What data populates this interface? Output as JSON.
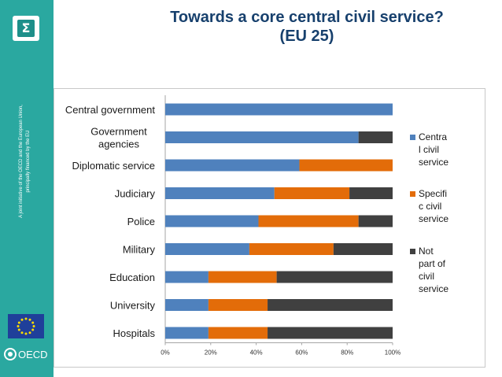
{
  "title_line1": "Towards a core central civil service?",
  "title_line2": "(EU 25)",
  "sidebar": {
    "vertical_text_line1": "A joint initiative of the OECD and the European Union,",
    "vertical_text_line2": "principally financed by the EU",
    "oecd_label": "OECD",
    "logo_icon": "sigma-icon",
    "colors": {
      "sidebar": "#2aa8a0",
      "logo": "#1e8f8a"
    }
  },
  "chart_data": {
    "type": "bar",
    "orientation": "horizontal",
    "stacked": "percent",
    "categories": [
      "Central government",
      "Government agencies",
      "Diplomatic service",
      "Judiciary",
      "Police",
      "Military",
      "Education",
      "University",
      "Hospitals"
    ],
    "category_labels": [
      [
        "Central government"
      ],
      [
        "Government",
        "agencies"
      ],
      [
        "Diplomatic service"
      ],
      [
        "Judiciary"
      ],
      [
        "Police"
      ],
      [
        "Military"
      ],
      [
        "Education"
      ],
      [
        "University"
      ],
      [
        "Hospitals"
      ]
    ],
    "series": [
      {
        "name": "Central civil service",
        "legend_lines": [
          "Centra",
          "l civil",
          "service"
        ],
        "color": "#4f81bd",
        "values": [
          100,
          85,
          59,
          48,
          41,
          37,
          19,
          19,
          19
        ]
      },
      {
        "name": "Specific civil service",
        "legend_lines": [
          "Specifi",
          "c civil",
          "service"
        ],
        "color": "#e36c09",
        "values": [
          0,
          0,
          41,
          33,
          44,
          37,
          30,
          26,
          26
        ]
      },
      {
        "name": "Not part of civil service",
        "legend_lines": [
          "Not",
          "part of",
          "civil",
          "service"
        ],
        "color": "#404040",
        "values": [
          0,
          15,
          0,
          19,
          15,
          26,
          51,
          55,
          55
        ]
      }
    ],
    "xlim": [
      0,
      100
    ],
    "xticks": [
      "0%",
      "20%",
      "40%",
      "60%",
      "80%",
      "100%"
    ],
    "grid": false,
    "legend_position": "right"
  }
}
